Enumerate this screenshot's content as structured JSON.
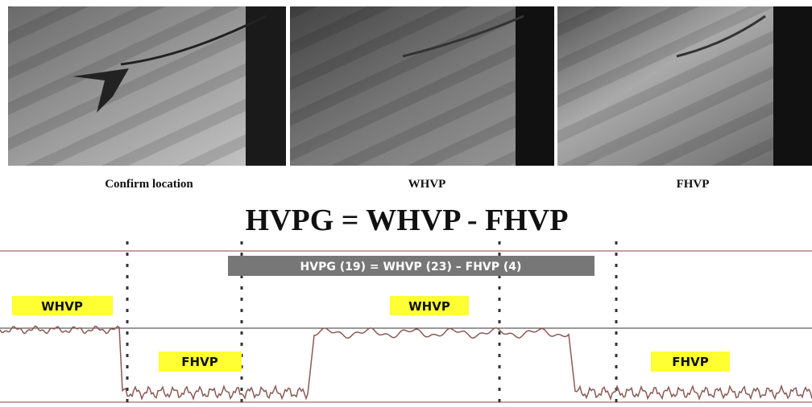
{
  "images": [
    {
      "caption": "Confirm location"
    },
    {
      "caption": "WHVP"
    },
    {
      "caption": "FHVP"
    }
  ],
  "title": "HVPG = WHVP - FHVP",
  "tracing": {
    "banner": "HVPG (19) = WHVP (23) – FHVP (4)",
    "labels": [
      "WHVP",
      "FHVP",
      "WHVP",
      "FHVP"
    ]
  }
}
